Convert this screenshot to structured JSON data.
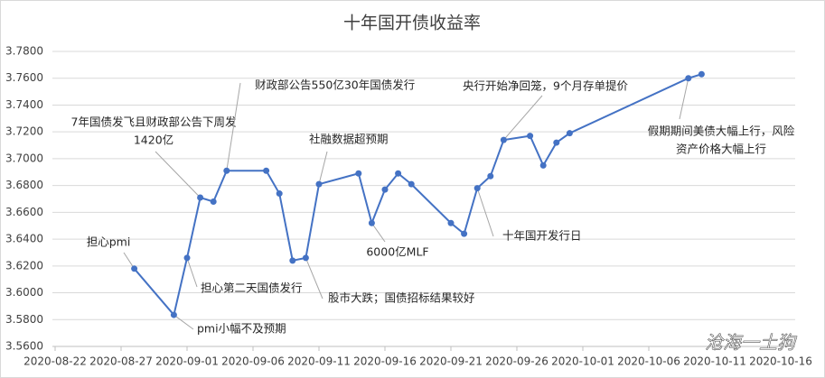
{
  "chart_data": {
    "type": "line",
    "title": "十年国开债收益率",
    "x": [
      "2020-08-28",
      "2020-08-31",
      "2020-09-01",
      "2020-09-02",
      "2020-09-03",
      "2020-09-04",
      "2020-09-07",
      "2020-09-08",
      "2020-09-09",
      "2020-09-10",
      "2020-09-11",
      "2020-09-14",
      "2020-09-15",
      "2020-09-16",
      "2020-09-17",
      "2020-09-18",
      "2020-09-21",
      "2020-09-22",
      "2020-09-23",
      "2020-09-24",
      "2020-09-25",
      "2020-09-27",
      "2020-09-28",
      "2020-09-29",
      "2020-09-30",
      "2020-10-09",
      "2020-10-10"
    ],
    "series": [
      {
        "name": "十年国开债收益率",
        "color": "#4472c4",
        "values": [
          3.618,
          3.5835,
          3.626,
          3.671,
          3.668,
          3.691,
          3.691,
          3.674,
          3.624,
          3.626,
          3.681,
          3.689,
          3.652,
          3.677,
          3.689,
          3.681,
          3.652,
          3.644,
          3.678,
          3.687,
          3.714,
          3.717,
          3.695,
          3.712,
          3.719,
          3.76,
          3.763
        ]
      }
    ],
    "xlim": [
      "2020-08-22",
      "2020-10-16"
    ],
    "xticks": [
      "2020-08-22",
      "2020-08-27",
      "2020-09-01",
      "2020-09-06",
      "2020-09-11",
      "2020-09-16",
      "2020-09-21",
      "2020-09-26",
      "2020-10-01",
      "2020-10-06",
      "2020-10-11",
      "2020-10-16"
    ],
    "ylim": [
      3.56,
      3.78
    ],
    "yticks": [
      {
        "value": 3.56,
        "label": "3.5600"
      },
      {
        "value": 3.58,
        "label": "3.5800"
      },
      {
        "value": 3.6,
        "label": "3.6000"
      },
      {
        "value": 3.62,
        "label": "3.6200"
      },
      {
        "value": 3.64,
        "label": "3.6400"
      },
      {
        "value": 3.66,
        "label": "3.6600"
      },
      {
        "value": 3.68,
        "label": "3.6800"
      },
      {
        "value": 3.7,
        "label": "3.7000"
      },
      {
        "value": 3.72,
        "label": "3.7200"
      },
      {
        "value": 3.74,
        "label": "3.7400"
      },
      {
        "value": 3.76,
        "label": "3.7600"
      },
      {
        "value": 3.78,
        "label": "3.7800"
      }
    ],
    "grid": true,
    "annotations": [
      {
        "text": [
          "担心pmi"
        ]
      },
      {
        "text": [
          "pmi小幅不及预期"
        ]
      },
      {
        "text": [
          "担心第二天国债发行"
        ]
      },
      {
        "text": [
          "7年国债发飞且财政部公告下周发",
          "1420亿"
        ]
      },
      {
        "text": [
          "财政部公告550亿30年国债发行"
        ]
      },
      {
        "text": [
          "社融数据超预期"
        ]
      },
      {
        "text": [
          "股市大跌；国债招标结果较好"
        ]
      },
      {
        "text": [
          "6000亿MLF"
        ]
      },
      {
        "text": [
          "十年国开发行日"
        ]
      },
      {
        "text": [
          "央行开始净回笼，9个月存单提价"
        ]
      },
      {
        "text": [
          "假期期间美债大幅上行，风险",
          "资产价格大幅上行"
        ]
      }
    ],
    "watermark": "沧海一土狗"
  }
}
